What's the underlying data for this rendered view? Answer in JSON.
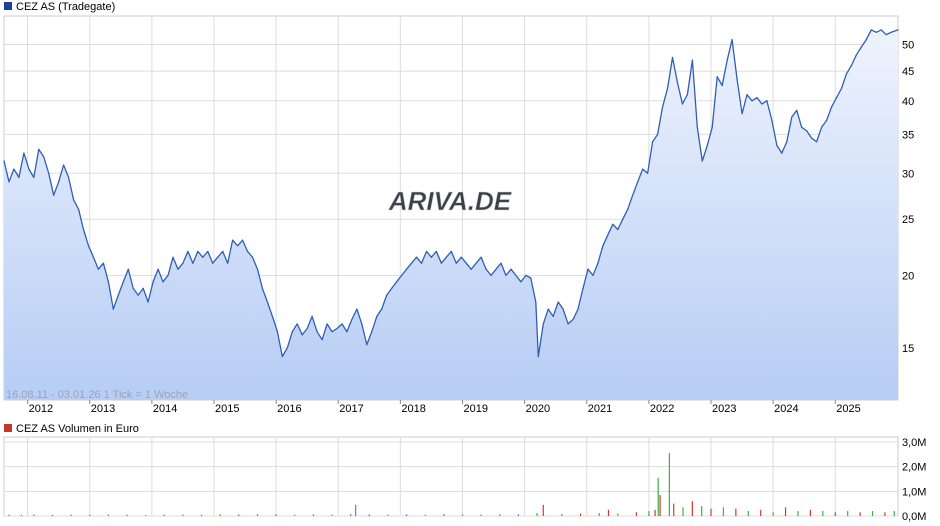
{
  "price_chart": {
    "legend_label": "CEZ AS (Tradegate)",
    "watermark": "ARIVA.DE",
    "footnote": "16.08.11 - 03.01.26   1 Tick = 1 Woche",
    "colors": {
      "line": "#2f5fb3",
      "fill_top": "#eef3fd",
      "fill_bottom": "#b7cdf5",
      "grid": "#dddddd",
      "legend_box": "#1f3f9f"
    }
  },
  "volume_chart": {
    "legend_label": "CEZ AS Volumen in Euro",
    "colors": {
      "up": "#3cb043",
      "down": "#d9362b",
      "legend_box": "#c0392b"
    }
  },
  "chart_data": [
    {
      "type": "area",
      "title": "CEZ AS (Tradegate)",
      "scale": "log",
      "ylim": [
        12.2,
        56
      ],
      "y_ticks": [
        15,
        20,
        25,
        30,
        35,
        40,
        45,
        50
      ],
      "y_tick_labels": [
        "15",
        "20",
        "25",
        "30",
        "35",
        "40",
        "45",
        "50"
      ],
      "x_tick_labels": [
        "2012",
        "2013",
        "2014",
        "2015",
        "2016",
        "2017",
        "2018",
        "2019",
        "2020",
        "2021",
        "2022",
        "2023",
        "2024",
        "2025"
      ],
      "x_ticks": [
        2012.0,
        2013.0,
        2014.0,
        2015.0,
        2016.0,
        2017.0,
        2018.0,
        2019.0,
        2020.0,
        2021.0,
        2022.0,
        2023.0,
        2024.0,
        2025.0
      ],
      "xlim": [
        2011.62,
        2026.01
      ],
      "grid": true,
      "series": [
        {
          "name": "CEZ AS (Tradegate)",
          "points": [
            [
              2011.62,
              31.5
            ],
            [
              2011.7,
              29.0
            ],
            [
              2011.78,
              30.5
            ],
            [
              2011.86,
              29.5
            ],
            [
              2011.94,
              32.5
            ],
            [
              2012.02,
              30.5
            ],
            [
              2012.1,
              29.5
            ],
            [
              2012.18,
              33.0
            ],
            [
              2012.26,
              32.0
            ],
            [
              2012.34,
              30.0
            ],
            [
              2012.42,
              27.5
            ],
            [
              2012.5,
              29.0
            ],
            [
              2012.58,
              31.0
            ],
            [
              2012.66,
              29.5
            ],
            [
              2012.74,
              27.0
            ],
            [
              2012.82,
              26.0
            ],
            [
              2012.9,
              24.0
            ],
            [
              2012.98,
              22.5
            ],
            [
              2013.06,
              21.5
            ],
            [
              2013.14,
              20.5
            ],
            [
              2013.22,
              21.0
            ],
            [
              2013.3,
              19.5
            ],
            [
              2013.38,
              17.5
            ],
            [
              2013.46,
              18.5
            ],
            [
              2013.54,
              19.5
            ],
            [
              2013.62,
              20.5
            ],
            [
              2013.7,
              19.0
            ],
            [
              2013.78,
              18.5
            ],
            [
              2013.86,
              19.0
            ],
            [
              2013.94,
              18.0
            ],
            [
              2014.02,
              19.5
            ],
            [
              2014.1,
              20.5
            ],
            [
              2014.18,
              19.5
            ],
            [
              2014.26,
              20.0
            ],
            [
              2014.34,
              21.5
            ],
            [
              2014.42,
              20.5
            ],
            [
              2014.5,
              21.0
            ],
            [
              2014.58,
              22.0
            ],
            [
              2014.66,
              21.0
            ],
            [
              2014.74,
              22.0
            ],
            [
              2014.82,
              21.5
            ],
            [
              2014.9,
              22.0
            ],
            [
              2014.98,
              21.0
            ],
            [
              2015.06,
              21.5
            ],
            [
              2015.14,
              22.0
            ],
            [
              2015.22,
              21.0
            ],
            [
              2015.3,
              23.0
            ],
            [
              2015.38,
              22.5
            ],
            [
              2015.46,
              23.0
            ],
            [
              2015.54,
              22.0
            ],
            [
              2015.62,
              21.5
            ],
            [
              2015.7,
              20.5
            ],
            [
              2015.78,
              19.0
            ],
            [
              2015.86,
              18.0
            ],
            [
              2015.94,
              17.0
            ],
            [
              2016.02,
              16.0
            ],
            [
              2016.1,
              14.5
            ],
            [
              2016.18,
              15.0
            ],
            [
              2016.26,
              16.0
            ],
            [
              2016.34,
              16.5
            ],
            [
              2016.42,
              15.8
            ],
            [
              2016.5,
              16.2
            ],
            [
              2016.58,
              17.0
            ],
            [
              2016.66,
              16.0
            ],
            [
              2016.74,
              15.5
            ],
            [
              2016.82,
              16.5
            ],
            [
              2016.9,
              16.0
            ],
            [
              2016.98,
              16.2
            ],
            [
              2017.06,
              16.5
            ],
            [
              2017.14,
              16.0
            ],
            [
              2017.22,
              16.8
            ],
            [
              2017.3,
              17.5
            ],
            [
              2017.38,
              16.5
            ],
            [
              2017.46,
              15.2
            ],
            [
              2017.54,
              16.0
            ],
            [
              2017.62,
              17.0
            ],
            [
              2017.7,
              17.5
            ],
            [
              2017.78,
              18.5
            ],
            [
              2017.86,
              19.0
            ],
            [
              2017.94,
              19.5
            ],
            [
              2018.02,
              20.0
            ],
            [
              2018.1,
              20.5
            ],
            [
              2018.18,
              21.0
            ],
            [
              2018.26,
              21.5
            ],
            [
              2018.34,
              21.0
            ],
            [
              2018.42,
              22.0
            ],
            [
              2018.5,
              21.5
            ],
            [
              2018.58,
              22.0
            ],
            [
              2018.66,
              21.0
            ],
            [
              2018.74,
              21.5
            ],
            [
              2018.82,
              22.0
            ],
            [
              2018.9,
              21.0
            ],
            [
              2018.98,
              21.5
            ],
            [
              2019.06,
              21.0
            ],
            [
              2019.14,
              20.5
            ],
            [
              2019.22,
              21.0
            ],
            [
              2019.3,
              21.5
            ],
            [
              2019.38,
              20.5
            ],
            [
              2019.46,
              20.0
            ],
            [
              2019.54,
              20.5
            ],
            [
              2019.62,
              21.0
            ],
            [
              2019.7,
              20.0
            ],
            [
              2019.78,
              20.5
            ],
            [
              2019.86,
              20.0
            ],
            [
              2019.94,
              19.5
            ],
            [
              2020.02,
              20.0
            ],
            [
              2020.1,
              19.8
            ],
            [
              2020.18,
              18.0
            ],
            [
              2020.22,
              14.5
            ],
            [
              2020.3,
              16.5
            ],
            [
              2020.38,
              17.5
            ],
            [
              2020.46,
              17.0
            ],
            [
              2020.54,
              18.0
            ],
            [
              2020.62,
              17.5
            ],
            [
              2020.7,
              16.5
            ],
            [
              2020.78,
              16.8
            ],
            [
              2020.86,
              17.5
            ],
            [
              2020.94,
              19.0
            ],
            [
              2021.02,
              20.5
            ],
            [
              2021.1,
              20.0
            ],
            [
              2021.18,
              21.0
            ],
            [
              2021.26,
              22.5
            ],
            [
              2021.34,
              23.5
            ],
            [
              2021.42,
              24.5
            ],
            [
              2021.5,
              24.0
            ],
            [
              2021.58,
              25.0
            ],
            [
              2021.66,
              26.0
            ],
            [
              2021.74,
              27.5
            ],
            [
              2021.82,
              29.0
            ],
            [
              2021.9,
              30.5
            ],
            [
              2021.98,
              30.0
            ],
            [
              2022.06,
              34.0
            ],
            [
              2022.14,
              35.0
            ],
            [
              2022.22,
              39.0
            ],
            [
              2022.3,
              42.0
            ],
            [
              2022.38,
              47.5
            ],
            [
              2022.46,
              43.0
            ],
            [
              2022.54,
              39.5
            ],
            [
              2022.62,
              41.0
            ],
            [
              2022.7,
              47.0
            ],
            [
              2022.78,
              36.0
            ],
            [
              2022.86,
              31.5
            ],
            [
              2022.94,
              33.5
            ],
            [
              2023.02,
              36.0
            ],
            [
              2023.1,
              44.0
            ],
            [
              2023.18,
              42.5
            ],
            [
              2023.26,
              47.0
            ],
            [
              2023.34,
              51.0
            ],
            [
              2023.42,
              43.5
            ],
            [
              2023.5,
              38.0
            ],
            [
              2023.58,
              41.0
            ],
            [
              2023.66,
              40.0
            ],
            [
              2023.74,
              40.5
            ],
            [
              2023.82,
              39.5
            ],
            [
              2023.9,
              40.0
            ],
            [
              2023.98,
              37.0
            ],
            [
              2024.06,
              33.5
            ],
            [
              2024.14,
              32.5
            ],
            [
              2024.22,
              34.0
            ],
            [
              2024.3,
              37.5
            ],
            [
              2024.38,
              38.5
            ],
            [
              2024.46,
              36.0
            ],
            [
              2024.54,
              35.5
            ],
            [
              2024.62,
              34.5
            ],
            [
              2024.7,
              34.0
            ],
            [
              2024.78,
              36.0
            ],
            [
              2024.86,
              37.0
            ],
            [
              2024.94,
              39.0
            ],
            [
              2025.02,
              40.5
            ],
            [
              2025.1,
              42.0
            ],
            [
              2025.18,
              44.5
            ],
            [
              2025.26,
              46.0
            ],
            [
              2025.34,
              48.0
            ],
            [
              2025.42,
              49.5
            ],
            [
              2025.5,
              51.0
            ],
            [
              2025.58,
              53.0
            ],
            [
              2025.66,
              52.5
            ],
            [
              2025.74,
              53.0
            ],
            [
              2025.82,
              52.0
            ],
            [
              2025.9,
              52.5
            ],
            [
              2026.01,
              53.0
            ]
          ]
        }
      ]
    },
    {
      "type": "bar",
      "title": "CEZ AS Volumen in Euro",
      "ylim": [
        0,
        3.2
      ],
      "y_ticks": [
        0,
        1,
        2,
        3
      ],
      "y_tick_labels": [
        "0,0M",
        "1,0M",
        "2,0M",
        "3,0M"
      ],
      "xlim": [
        2011.62,
        2026.01
      ],
      "grid": true,
      "series": [
        {
          "name": "CEZ AS Volumen in Euro",
          "points": [
            [
              2011.7,
              0.05
            ],
            [
              2011.9,
              0.04
            ],
            [
              2012.1,
              0.06
            ],
            [
              2012.4,
              0.04
            ],
            [
              2012.7,
              0.05
            ],
            [
              2013.0,
              0.05
            ],
            [
              2013.3,
              0.06
            ],
            [
              2013.6,
              0.05
            ],
            [
              2013.9,
              0.04
            ],
            [
              2014.2,
              0.05
            ],
            [
              2014.5,
              0.06
            ],
            [
              2014.8,
              0.05
            ],
            [
              2015.1,
              0.07
            ],
            [
              2015.4,
              0.06
            ],
            [
              2015.7,
              0.08
            ],
            [
              2016.0,
              0.06
            ],
            [
              2016.3,
              0.05
            ],
            [
              2016.6,
              0.06
            ],
            [
              2016.9,
              0.05
            ],
            [
              2017.2,
              0.07
            ],
            [
              2017.28,
              0.45
            ],
            [
              2017.5,
              0.06
            ],
            [
              2017.8,
              0.05
            ],
            [
              2018.1,
              0.06
            ],
            [
              2018.4,
              0.05
            ],
            [
              2018.7,
              0.07
            ],
            [
              2019.0,
              0.06
            ],
            [
              2019.3,
              0.05
            ],
            [
              2019.6,
              0.07
            ],
            [
              2019.9,
              0.06
            ],
            [
              2020.2,
              0.12
            ],
            [
              2020.3,
              0.45
            ],
            [
              2020.6,
              0.08
            ],
            [
              2020.9,
              0.1
            ],
            [
              2021.2,
              0.12
            ],
            [
              2021.35,
              0.25
            ],
            [
              2021.5,
              0.1
            ],
            [
              2021.8,
              0.15
            ],
            [
              2022.0,
              0.2
            ],
            [
              2022.1,
              0.25
            ],
            [
              2022.15,
              1.55
            ],
            [
              2022.18,
              0.85
            ],
            [
              2022.33,
              2.55
            ],
            [
              2022.4,
              0.5
            ],
            [
              2022.55,
              0.35
            ],
            [
              2022.7,
              0.6
            ],
            [
              2022.85,
              0.4
            ],
            [
              2023.0,
              0.3
            ],
            [
              2023.2,
              0.35
            ],
            [
              2023.4,
              0.3
            ],
            [
              2023.6,
              0.2
            ],
            [
              2023.8,
              0.25
            ],
            [
              2024.0,
              0.15
            ],
            [
              2024.2,
              0.35
            ],
            [
              2024.4,
              0.2
            ],
            [
              2024.6,
              0.25
            ],
            [
              2024.8,
              0.2
            ],
            [
              2025.0,
              0.15
            ],
            [
              2025.2,
              0.2
            ],
            [
              2025.4,
              0.15
            ],
            [
              2025.6,
              0.2
            ],
            [
              2025.8,
              0.15
            ],
            [
              2025.95,
              0.2
            ]
          ]
        }
      ]
    }
  ]
}
